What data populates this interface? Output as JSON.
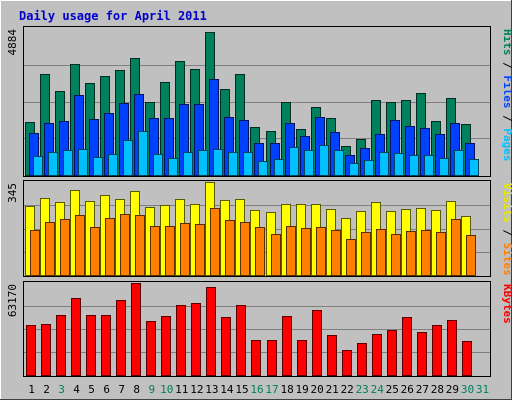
{
  "chart_data": {
    "type": "bar",
    "title": "Daily usage for April 2011",
    "days": [
      "1",
      "2",
      "3",
      "4",
      "5",
      "6",
      "7",
      "8",
      "9",
      "10",
      "11",
      "12",
      "13",
      "14",
      "15",
      "16",
      "17",
      "18",
      "19",
      "20",
      "21",
      "22",
      "23",
      "24",
      "25",
      "26",
      "27",
      "28",
      "29",
      "30",
      "31"
    ],
    "weekend_days": [
      "3",
      "9",
      "10",
      "16",
      "17",
      "23",
      "24",
      "30",
      "31"
    ],
    "panels": [
      {
        "id": "hits",
        "ymax": 4884,
        "ymax_label": "4884",
        "side_labels": [
          {
            "text": "Hits",
            "color": "#00805c"
          },
          {
            "text": " / ",
            "color": "#000000"
          },
          {
            "text": "Files",
            "color": "#0040ff"
          },
          {
            "text": " / ",
            "color": "#000000"
          },
          {
            "text": "Pages",
            "color": "#00c0ff"
          }
        ],
        "series": [
          {
            "name": "Hits",
            "color": "#00805c",
            "values": [
              1775,
              3358,
              2800,
              3682,
              3050,
              3304,
              3477,
              3875,
              2410,
              3075,
              3801,
              3536,
              4761,
              2864,
              3355,
              1591,
              1459,
              2423,
              1514,
              2248,
              1890,
              959,
              1186,
              2489,
              2415,
              2478,
              2726,
              1789,
              2563,
              1682,
              null
            ]
          },
          {
            "name": "Files",
            "color": "#0040ff",
            "values": [
              1393,
              1726,
              1806,
              2646,
              1860,
              2075,
              2402,
              2699,
              1895,
              1902,
              2365,
              2375,
              3187,
              1923,
              1816,
              1076,
              1066,
              1715,
              1300,
              1939,
              1418,
              669,
              884,
              1372,
              1839,
              1620,
              1552,
              1378,
              1727,
              1053,
              null
            ]
          },
          {
            "name": "Pages",
            "color": "#00c0ff",
            "values": [
              619,
              767,
              818,
              866,
              583,
              683,
              1149,
              1475,
              694,
              572,
              765,
              835,
              863,
              768,
              763,
              481,
              520,
              932,
              817,
              985,
              832,
              401,
              487,
              752,
              735,
              657,
              674,
              552,
              839,
              521,
              null
            ]
          }
        ]
      },
      {
        "id": "visits",
        "ymax": 345,
        "ymax_label": "345",
        "side_labels": [
          {
            "text": "Visits",
            "color": "#e6e600"
          },
          {
            "text": " / ",
            "color": "#000000"
          },
          {
            "text": "Sites",
            "color": "#ff8000"
          }
        ],
        "series": [
          {
            "name": "Visits",
            "color": "#ffff00",
            "values": [
              257,
              287,
              269,
              315,
              275,
              297,
              283,
              310,
              253,
              258,
              283,
              263,
              345,
              279,
              282,
              241,
              232,
              264,
              262,
              262,
              246,
              210,
              239,
              271,
              236,
              245,
              249,
              241,
              276,
              219,
              null
            ]
          },
          {
            "name": "Sites",
            "color": "#ff8000",
            "values": [
              168,
              196,
              206,
              222,
              178,
              211,
              225,
              223,
              183,
              180,
              192,
              190,
              247,
              203,
              197,
              177,
              153,
              183,
              173,
              179,
              167,
              134,
              159,
              169,
              151,
              162,
              167,
              160,
              207,
              147,
              null
            ]
          }
        ]
      },
      {
        "id": "kbytes",
        "ymax": 63170,
        "ymax_label": "63170",
        "side_labels": [
          {
            "text": "KBytes",
            "color": "#ff0000"
          }
        ],
        "series": [
          {
            "name": "KBytes",
            "color": "#ff0000",
            "values": [
              34096,
              35342,
              41163,
              53045,
              40897,
              40890,
              51683,
              63170,
              36938,
              40658,
              47887,
              49318,
              60359,
              39847,
              47855,
              23826,
              23811,
              40232,
              23967,
              44974,
              27616,
              17434,
              21860,
              27937,
              30779,
              39794,
              29843,
              34163,
              37846,
              23512,
              null
            ]
          }
        ]
      }
    ]
  }
}
